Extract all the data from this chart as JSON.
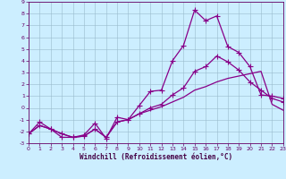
{
  "xlabel": "Windchill (Refroidissement éolien,°C)",
  "background_color": "#cceeff",
  "line_color": "#880088",
  "grid_color": "#99bbcc",
  "xlim": [
    0,
    23
  ],
  "ylim": [
    -3,
    9
  ],
  "xticks": [
    0,
    1,
    2,
    3,
    4,
    5,
    6,
    7,
    8,
    9,
    10,
    11,
    12,
    13,
    14,
    15,
    16,
    17,
    18,
    19,
    20,
    21,
    22,
    23
  ],
  "yticks": [
    -3,
    -2,
    -1,
    0,
    1,
    2,
    3,
    4,
    5,
    6,
    7,
    8,
    9
  ],
  "line1_x": [
    0,
    1,
    2,
    3,
    4,
    5,
    6,
    7,
    8,
    9,
    10,
    11,
    12,
    13,
    14,
    15,
    16,
    17,
    18,
    19,
    20,
    21,
    22,
    23
  ],
  "line1_y": [
    -2.2,
    -1.2,
    -1.8,
    -2.5,
    -2.5,
    -2.3,
    -1.3,
    -2.6,
    -0.8,
    -1.0,
    0.2,
    1.4,
    1.5,
    4.0,
    5.3,
    8.3,
    7.4,
    7.8,
    5.2,
    4.7,
    3.5,
    1.1,
    1.0,
    0.8
  ],
  "line2_x": [
    0,
    1,
    2,
    3,
    4,
    5,
    6,
    7,
    8,
    9,
    10,
    11,
    12,
    13,
    14,
    15,
    16,
    17,
    18,
    19,
    20,
    21,
    22,
    23
  ],
  "line2_y": [
    -2.2,
    -1.5,
    -1.8,
    -2.2,
    -2.5,
    -2.4,
    -1.8,
    -2.5,
    -1.2,
    -1.0,
    -0.5,
    0.0,
    0.3,
    1.1,
    1.7,
    3.1,
    3.5,
    4.4,
    3.9,
    3.2,
    2.2,
    1.5,
    0.8,
    0.5
  ],
  "line3_x": [
    0,
    1,
    2,
    3,
    4,
    5,
    6,
    7,
    8,
    9,
    10,
    11,
    12,
    13,
    14,
    15,
    16,
    17,
    18,
    19,
    20,
    21,
    22,
    23
  ],
  "line3_y": [
    -2.2,
    -1.5,
    -1.8,
    -2.2,
    -2.5,
    -2.4,
    -1.8,
    -2.5,
    -1.2,
    -1.0,
    -0.5,
    -0.2,
    0.1,
    0.5,
    0.9,
    1.5,
    1.8,
    2.2,
    2.5,
    2.7,
    2.9,
    3.1,
    0.3,
    -0.2
  ]
}
